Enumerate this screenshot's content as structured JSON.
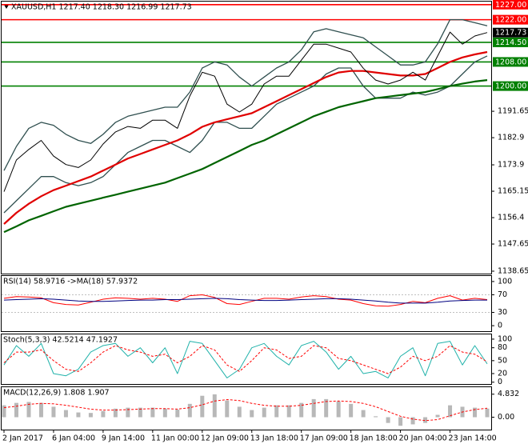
{
  "chart_data": [
    {
      "type": "line",
      "title": "XAUUSD,H1  1217.40 1218.30 1216.99 1217.73",
      "categories": [
        "2 Jan 2017",
        null,
        null,
        null,
        "6 Jan 04:00",
        null,
        null,
        null,
        "9 Jan 14:00",
        null,
        null,
        null,
        "11 Jan 00:00",
        null,
        null,
        null,
        "12 Jan 09:00",
        null,
        null,
        null,
        "13 Jan 18:00",
        null,
        null,
        null,
        "17 Jan 09:00",
        null,
        null,
        null,
        "18 Jan 18:00",
        null,
        null,
        null,
        "20 Jan 04:00",
        null,
        null,
        null,
        "23 Jan 14:00",
        null,
        null,
        null
      ],
      "ylim": [
        1137.85,
        1228.0
      ],
      "yticks": [
        1138.65,
        1147.65,
        1156.4,
        1165.15,
        1173.9,
        1182.9,
        1191.65
      ],
      "levels": [
        {
          "value": 1227.0,
          "label": "1227.00",
          "color": "#ff0000"
        },
        {
          "value": 1222.0,
          "label": "1222.00",
          "color": "#ff0000"
        },
        {
          "value": 1214.5,
          "label": "1214.50",
          "color": "#008000"
        },
        {
          "value": 1208.0,
          "label": "1208.00",
          "color": "#008000"
        },
        {
          "value": 1200.0,
          "label": "1200.00",
          "color": "#008000"
        }
      ],
      "last_price": {
        "value": 1217.73,
        "label": "1217.73",
        "color": "#000000"
      },
      "series": [
        {
          "name": "Bollinger upper",
          "color": "#2f4f4f",
          "width": 1.3,
          "values": [
            1172,
            1180,
            1186,
            1188,
            1187,
            1184,
            1182,
            1181,
            1184,
            1188,
            1190,
            1191,
            1192,
            1193,
            1193,
            1198,
            1206,
            1208,
            1207,
            1203,
            1200,
            1203,
            1206,
            1208,
            1212,
            1218,
            1219,
            1218,
            1217,
            1216,
            1213,
            1210,
            1207,
            1207,
            1208,
            1214,
            1222,
            1222,
            1221,
            1220
          ]
        },
        {
          "name": "Bollinger lower",
          "color": "#2f4f4f",
          "width": 1.3,
          "values": [
            1158,
            1162,
            1166,
            1170,
            1170,
            1168,
            1167,
            1168,
            1170,
            1174,
            1178,
            1180,
            1182,
            1182,
            1180,
            1178,
            1182,
            1188,
            1188,
            1186,
            1186,
            1190,
            1194,
            1196,
            1198,
            1200,
            1204,
            1206,
            1206,
            1200,
            1196,
            1196,
            1196,
            1198,
            1197,
            1198,
            1200,
            1204,
            1208,
            1210
          ]
        },
        {
          "name": "MA red",
          "color": "#e00000",
          "width": 2.2,
          "values": [
            1154.3,
            1158,
            1161,
            1163.5,
            1165.5,
            1167,
            1168.5,
            1170,
            1172,
            1174,
            1176,
            1177.5,
            1179,
            1180.5,
            1182,
            1184,
            1186.5,
            1188,
            1189,
            1190,
            1191,
            1193,
            1195,
            1197,
            1199,
            1201,
            1203,
            1204.5,
            1205,
            1205,
            1204.5,
            1204,
            1203.5,
            1203.5,
            1204,
            1206,
            1208,
            1209.5,
            1210.5,
            1211.3
          ]
        },
        {
          "name": "MA green",
          "color": "#006400",
          "width": 2.2,
          "values": [
            1151.6,
            1153.5,
            1155.5,
            1157,
            1158.5,
            1160,
            1161,
            1162,
            1163,
            1164,
            1165,
            1166,
            1167,
            1168,
            1169.5,
            1171,
            1172.5,
            1174.5,
            1176.5,
            1178.5,
            1180.5,
            1182,
            1184,
            1186,
            1188,
            1190,
            1191.5,
            1193,
            1194,
            1195,
            1196,
            1196.5,
            1197,
            1197.5,
            1198,
            1199,
            1200,
            1200.8,
            1201.5,
            1202
          ]
        },
        {
          "name": "Close",
          "color": "#000000",
          "width": 1,
          "values": [
            1165.0,
            1175.5,
            1179.0,
            1182.0,
            1176.8,
            1174.0,
            1173.0,
            1175.5,
            1180.8,
            1184.8,
            1186.6,
            1186.0,
            1188.7,
            1188.7,
            1186.0,
            1196.7,
            1204.6,
            1203.3,
            1194.0,
            1191.4,
            1194.0,
            1200.7,
            1203.3,
            1203.3,
            1208.6,
            1213.9,
            1213.9,
            1212.6,
            1211.3,
            1205.9,
            1202.0,
            1200.7,
            1202.0,
            1204.6,
            1202.0,
            1210.0,
            1217.9,
            1213.9,
            1216.6,
            1217.73
          ]
        }
      ]
    },
    {
      "type": "line",
      "title": "RSI(14) 58.9716  ->MA(18) 57.9372",
      "ylim": [
        -12.5,
        112.5
      ],
      "yticks": [
        0,
        30,
        70,
        100
      ],
      "series": [
        {
          "name": "RSI",
          "color": "#ff0000",
          "width": 1,
          "values": [
            62,
            66,
            65,
            63,
            52,
            48,
            47,
            53,
            60,
            63,
            62,
            60,
            62,
            60,
            55,
            68,
            70,
            64,
            50,
            48,
            55,
            62,
            62,
            60,
            65,
            68,
            66,
            60,
            58,
            50,
            45,
            44,
            48,
            55,
            52,
            62,
            68,
            58,
            62,
            58.9716
          ]
        },
        {
          "name": "MA",
          "color": "#000080",
          "width": 1,
          "values": [
            58,
            59,
            60,
            61,
            60,
            58,
            56,
            55,
            55,
            56,
            57,
            58,
            58,
            59,
            59,
            60,
            61,
            62,
            61,
            59,
            58,
            57,
            57,
            58,
            59,
            60,
            61,
            61,
            60,
            58,
            56,
            53,
            51,
            51,
            51,
            53,
            56,
            57,
            58,
            57.9372
          ]
        }
      ]
    },
    {
      "type": "line",
      "title": "Stoch(5,3,3) 42.5214 47.1927",
      "ylim": [
        -4.2,
        111
      ],
      "yticks": [
        0,
        20,
        50,
        80,
        100
      ],
      "series": [
        {
          "name": "Main",
          "color": "#20b2aa",
          "width": 1,
          "values": [
            40,
            85,
            60,
            90,
            20,
            15,
            30,
            70,
            85,
            90,
            60,
            80,
            45,
            80,
            20,
            95,
            90,
            50,
            10,
            30,
            80,
            90,
            60,
            40,
            85,
            95,
            70,
            30,
            60,
            20,
            25,
            10,
            60,
            80,
            15,
            90,
            95,
            40,
            85,
            42.5214
          ]
        },
        {
          "name": "Signal",
          "color": "#ff0000",
          "width": 1,
          "dash": true,
          "values": [
            45,
            70,
            70,
            75,
            50,
            30,
            25,
            45,
            70,
            85,
            75,
            70,
            60,
            65,
            45,
            60,
            85,
            75,
            40,
            25,
            50,
            80,
            75,
            55,
            60,
            85,
            80,
            55,
            50,
            40,
            30,
            20,
            35,
            60,
            50,
            60,
            85,
            70,
            65,
            47.1927
          ]
        }
      ]
    },
    {
      "type": "combo",
      "title": "MACD(12,26,9) 1.808 1.907",
      "ylim": [
        -2.6,
        6.3
      ],
      "yticks": [
        {
          "value": 0,
          "label": "0.00"
        },
        4.832
      ],
      "series": [
        {
          "name": "MACD",
          "color": "#b8b8b8",
          "style": "bar",
          "values": [
            2.5,
            3.0,
            3.2,
            3.0,
            2.2,
            1.5,
            1.0,
            0.9,
            1.3,
            1.8,
            2.0,
            2.0,
            2.0,
            1.8,
            1.6,
            2.8,
            4.5,
            4.8,
            3.5,
            2.2,
            1.5,
            2.0,
            2.5,
            2.5,
            3.0,
            3.8,
            3.8,
            3.3,
            2.8,
            1.5,
            0.2,
            -1.2,
            -1.8,
            -1.5,
            -1.2,
            0.5,
            2.5,
            2.2,
            2.0,
            1.808
          ]
        },
        {
          "name": "Signal",
          "color": "#ff0000",
          "width": 1,
          "dash": true,
          "values": [
            2.0,
            2.3,
            2.7,
            2.9,
            2.8,
            2.5,
            2.1,
            1.7,
            1.5,
            1.5,
            1.6,
            1.7,
            1.8,
            1.8,
            1.7,
            2.0,
            2.6,
            3.4,
            3.7,
            3.5,
            2.9,
            2.5,
            2.3,
            2.3,
            2.5,
            2.9,
            3.3,
            3.4,
            3.3,
            2.9,
            2.2,
            1.2,
            0.2,
            -0.4,
            -0.7,
            -0.5,
            0.3,
            1.1,
            1.6,
            1.907
          ]
        }
      ]
    }
  ]
}
